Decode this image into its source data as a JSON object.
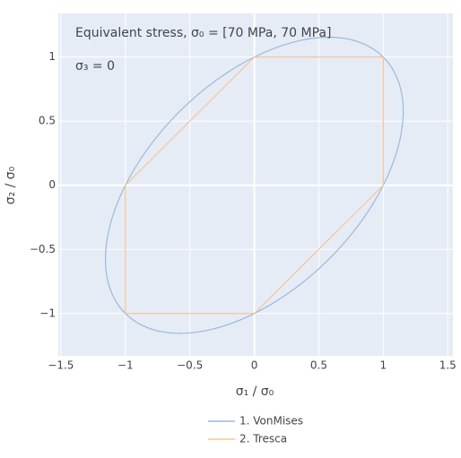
{
  "chart_data": {
    "type": "line",
    "annotations": [
      "Equivalent stress, σ₀ = [70 MPa, 70 MPa]",
      "σ₃ = 0"
    ],
    "xlabel": "σ₁ / σ₀",
    "ylabel": "σ₂ / σ₀",
    "xlim": [
      -1.52,
      1.54
    ],
    "ylim": [
      -1.33,
      1.34
    ],
    "xticks": [
      {
        "value": -1.5,
        "label": "−1.5"
      },
      {
        "value": -1,
        "label": "−1"
      },
      {
        "value": -0.5,
        "label": "−0.5"
      },
      0,
      0.5,
      1,
      1.5
    ],
    "yticks": [
      {
        "value": -1,
        "label": "−1"
      },
      {
        "value": -0.5,
        "label": "−0.5"
      },
      0,
      0.5,
      1
    ],
    "grid": true,
    "legend": "bottom",
    "series": [
      {
        "name": "1. VonMises",
        "color": "#9cb9d9",
        "smooth": true,
        "x": [
          1,
          0.8165,
          0.5774,
          0.2989,
          0,
          -0.2989,
          -0.5774,
          -0.8165,
          -1,
          -1.1153,
          -1.1547,
          -1.1153,
          -1,
          -0.8165,
          -0.5774,
          -0.2989,
          0,
          0.2989,
          0.5774,
          0.8165,
          1,
          1.1153,
          1.1547,
          1.1153,
          1
        ],
        "values": [
          1,
          1.1153,
          1.1547,
          1.1153,
          1,
          0.8165,
          0.5774,
          0.2989,
          0,
          -0.2989,
          -0.5774,
          -0.8165,
          -1,
          -1.1153,
          -1.1547,
          -1.1153,
          -1,
          -0.8165,
          -0.5774,
          -0.2989,
          0,
          0.2989,
          0.5774,
          0.8165,
          1
        ]
      },
      {
        "name": "2. Tresca",
        "color": "#f5c596",
        "smooth": false,
        "x": [
          1,
          0,
          -1,
          -1,
          0,
          1,
          1
        ],
        "values": [
          1,
          1,
          0,
          -1,
          -1,
          0,
          1
        ]
      }
    ]
  }
}
